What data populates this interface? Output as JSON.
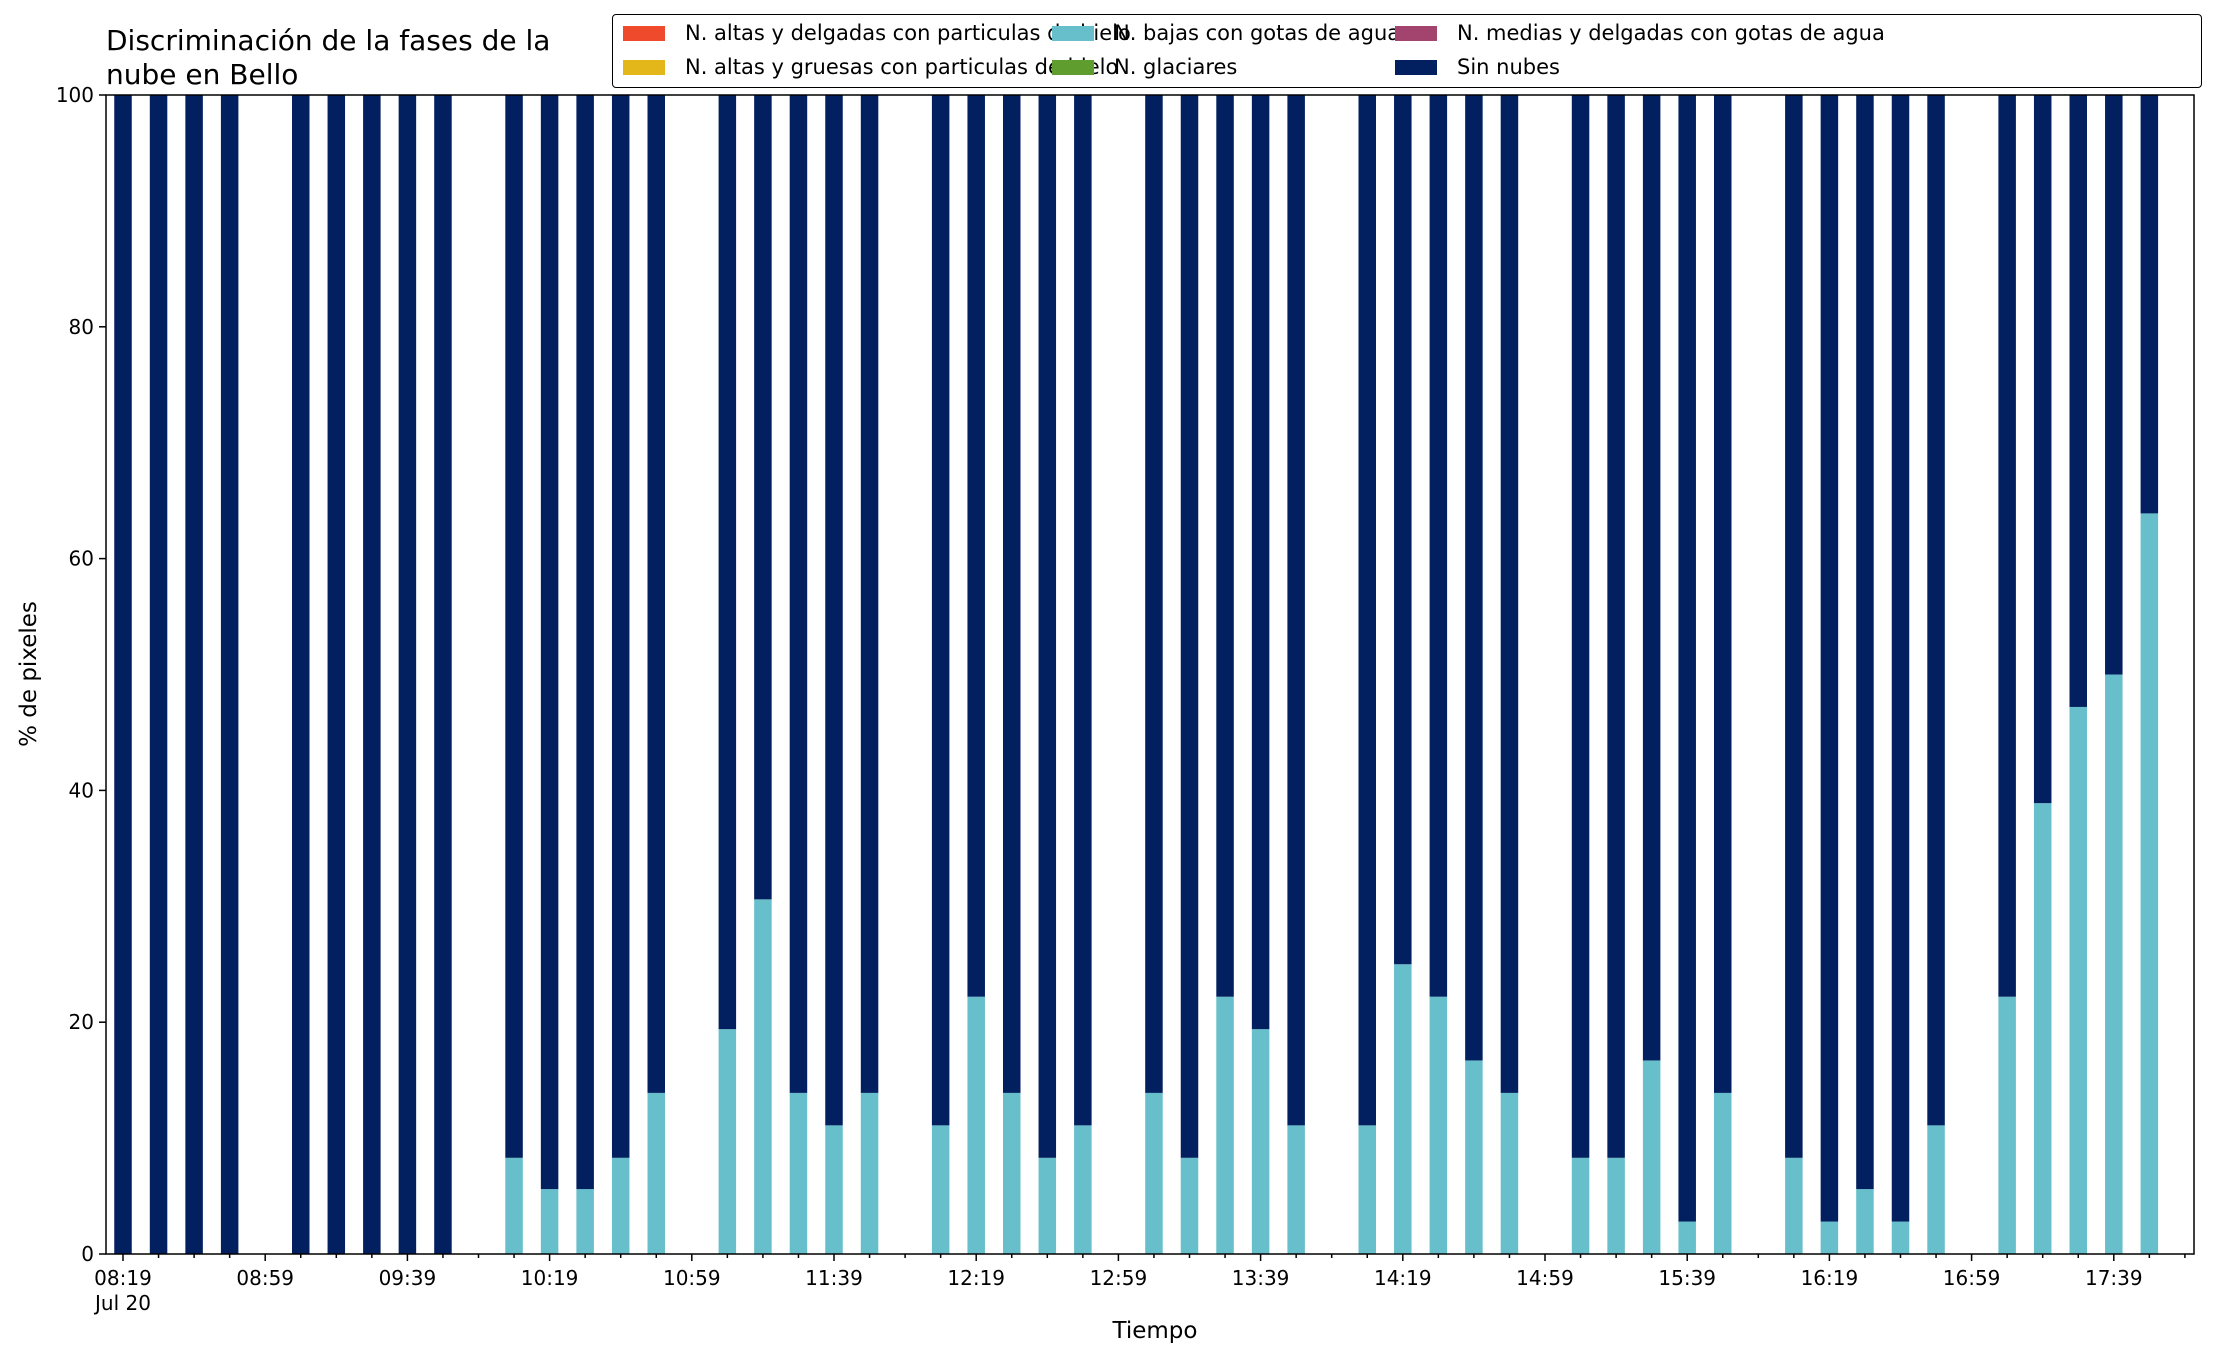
{
  "chart_data": {
    "type": "bar",
    "stacked": true,
    "title": "Discriminación de la fases de la nube en Bello",
    "xlabel": "Tiempo",
    "ylabel": "% de pixeles",
    "ylim": [
      0,
      100
    ],
    "yticks": [
      "0",
      "20",
      "40",
      "60",
      "80",
      "100"
    ],
    "xticks": [
      "08:19",
      "08:59",
      "09:39",
      "10:19",
      "10:59",
      "11:39",
      "12:19",
      "12:59",
      "13:39",
      "14:19",
      "14:59",
      "15:39",
      "16:19",
      "16:59",
      "17:39"
    ],
    "xtick_date": "Jul 20",
    "time_start": "08:19",
    "time_step_minutes": 10,
    "categories": [
      "08:19",
      "08:29",
      "08:39",
      "08:49",
      "08:59",
      "09:09",
      "09:19",
      "09:29",
      "09:39",
      "09:49",
      "09:59",
      "10:09",
      "10:19",
      "10:29",
      "10:39",
      "10:49",
      "10:59",
      "11:09",
      "11:19",
      "11:29",
      "11:39",
      "11:49",
      "11:59",
      "12:09",
      "12:19",
      "12:29",
      "12:39",
      "12:49",
      "12:59",
      "13:09",
      "13:19",
      "13:29",
      "13:39",
      "13:49",
      "13:59",
      "14:09",
      "14:19",
      "14:29",
      "14:39",
      "14:49",
      "14:59",
      "15:09",
      "15:19",
      "15:29",
      "15:39",
      "15:49",
      "15:59",
      "16:09",
      "16:19",
      "16:29",
      "16:39",
      "16:49",
      "16:59",
      "17:09",
      "17:19",
      "17:29",
      "17:39",
      "17:49"
    ],
    "legend_position": "top-right",
    "grid": false,
    "series": [
      {
        "name": "N. altas y delgadas con particulas de hielo",
        "color": "#ee4a2b",
        "values": [
          0,
          0,
          0,
          0,
          null,
          0,
          0,
          0,
          0,
          0,
          null,
          0,
          0,
          0,
          0,
          0,
          null,
          0,
          0,
          0,
          0,
          0,
          null,
          0,
          0,
          0,
          0,
          0,
          null,
          0,
          0,
          0,
          0,
          0,
          null,
          0,
          0,
          0,
          0,
          0,
          null,
          0,
          0,
          0,
          0,
          0,
          null,
          0,
          0,
          0,
          0,
          0,
          null,
          0,
          0,
          0,
          0,
          0
        ]
      },
      {
        "name": "N. altas y gruesas con particulas de hielo",
        "color": "#e3b61a",
        "values": [
          0,
          0,
          0,
          0,
          null,
          0,
          0,
          0,
          0,
          0,
          null,
          0,
          0,
          0,
          0,
          0,
          null,
          0,
          0,
          0,
          0,
          0,
          null,
          0,
          0,
          0,
          0,
          0,
          null,
          0,
          0,
          0,
          0,
          0,
          null,
          0,
          0,
          0,
          0,
          0,
          null,
          0,
          0,
          0,
          0,
          0,
          null,
          0,
          0,
          0,
          0,
          0,
          null,
          0,
          0,
          0,
          0,
          0
        ]
      },
      {
        "name": "N. bajas con gotas de agua",
        "color": "#67bfcb",
        "values": [
          0,
          0,
          0,
          0,
          null,
          0,
          0,
          0,
          0,
          0,
          null,
          8.3,
          5.6,
          5.6,
          8.3,
          13.9,
          null,
          19.4,
          30.6,
          13.9,
          11.1,
          13.9,
          null,
          11.1,
          22.2,
          13.9,
          8.3,
          11.1,
          null,
          13.9,
          8.3,
          22.2,
          19.4,
          11.1,
          null,
          11.1,
          25.0,
          22.2,
          16.7,
          13.9,
          null,
          8.3,
          8.3,
          16.7,
          2.8,
          13.9,
          null,
          8.3,
          2.8,
          5.6,
          2.8,
          11.1,
          null,
          22.2,
          38.9,
          47.2,
          50.0,
          63.9
        ]
      },
      {
        "name": "N. glaciares",
        "color": "#5f9e2e",
        "values": [
          0,
          0,
          0,
          0,
          null,
          0,
          0,
          0,
          0,
          0,
          null,
          0,
          0,
          0,
          0,
          0,
          null,
          0,
          0,
          0,
          0,
          0,
          null,
          0,
          0,
          0,
          0,
          0,
          null,
          0,
          0,
          0,
          0,
          0,
          null,
          0,
          0,
          0,
          0,
          0,
          null,
          0,
          0,
          0,
          0,
          0,
          null,
          0,
          0,
          0,
          0,
          0,
          null,
          0,
          0,
          0,
          0,
          0
        ]
      },
      {
        "name": "N. medias y delgadas con gotas de agua",
        "color": "#a2446e",
        "values": [
          0,
          0,
          0,
          0,
          null,
          0,
          0,
          0,
          0,
          0,
          null,
          0,
          0,
          0,
          0,
          0,
          null,
          0,
          0,
          0,
          0,
          0,
          null,
          0,
          0,
          0,
          0,
          0,
          null,
          0,
          0,
          0,
          0,
          0,
          null,
          0,
          0,
          0,
          0,
          0,
          null,
          0,
          0,
          0,
          0,
          0,
          null,
          0,
          0,
          0,
          0,
          0,
          null,
          0,
          0,
          0,
          0,
          0
        ]
      },
      {
        "name": "Sin nubes",
        "color": "#021f5f",
        "values": [
          100,
          100,
          100,
          100,
          null,
          100,
          100,
          100,
          100,
          100,
          null,
          91.7,
          94.4,
          94.4,
          91.7,
          86.1,
          null,
          80.6,
          69.4,
          86.1,
          88.9,
          86.1,
          null,
          88.9,
          77.8,
          86.1,
          91.7,
          88.9,
          null,
          86.1,
          91.7,
          77.8,
          80.6,
          88.9,
          null,
          88.9,
          75.0,
          77.8,
          83.3,
          86.1,
          null,
          91.7,
          91.7,
          83.3,
          97.2,
          86.1,
          null,
          91.7,
          97.2,
          94.4,
          97.2,
          88.9,
          null,
          77.8,
          61.1,
          52.8,
          50.0,
          36.1
        ]
      }
    ]
  }
}
